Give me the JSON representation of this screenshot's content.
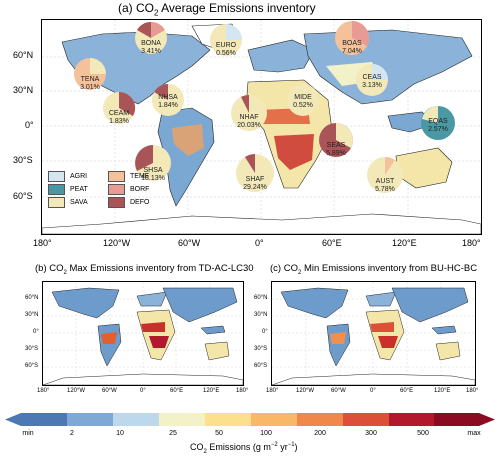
{
  "main_title": "(a) CO",
  "main_title_sub": "2",
  "main_title_rest": " Average Emissions inventory",
  "lat_labels": [
    "60°N",
    "30°N",
    "0°",
    "30°S",
    "60°S"
  ],
  "lon_labels": [
    "180°",
    "120°W",
    "60°W",
    "0°",
    "60°E",
    "120°E",
    "180°"
  ],
  "legend": [
    {
      "label": "AGRI",
      "color": "#d4e6f2"
    },
    {
      "label": "PEAT",
      "color": "#4a98a4"
    },
    {
      "label": "SAVA",
      "color": "#f2e8b8"
    },
    {
      "label": "TEMF",
      "color": "#f4c19a"
    },
    {
      "label": "BORF",
      "color": "#e89b95"
    },
    {
      "label": "DEFO",
      "color": "#a95457"
    }
  ],
  "regions": [
    {
      "name": "BONA",
      "pct": "3.41%"
    },
    {
      "name": "TENA",
      "pct": "3.01%"
    },
    {
      "name": "CEAM",
      "pct": "1.83%"
    },
    {
      "name": "NHSA",
      "pct": "1.84%"
    },
    {
      "name": "SHSA",
      "pct": "18.13%"
    },
    {
      "name": "EURO",
      "pct": "0.56%"
    },
    {
      "name": "MIDE",
      "pct": "0.52%"
    },
    {
      "name": "NHAF",
      "pct": "20.03%"
    },
    {
      "name": "SHAF",
      "pct": "29.24%"
    },
    {
      "name": "BOAS",
      "pct": "7.04%"
    },
    {
      "name": "CEAS",
      "pct": "3.13%"
    },
    {
      "name": "SEAS",
      "pct": "5.89%"
    },
    {
      "name": "EQAS",
      "pct": "2.57%"
    },
    {
      "name": "AUST",
      "pct": "5.78%"
    }
  ],
  "panel_b_title": "(b) CO",
  "panel_b_sub": "2",
  "panel_b_rest": " Max Emissions inventory from TD-AC-LC30",
  "panel_c_title": "(c) CO",
  "panel_c_sub": "2",
  "panel_c_rest": " Min Emissions inventory from BU-HC-BC",
  "small_lat_labels": [
    "60°N",
    "30°N",
    "0°",
    "30°S",
    "60°S"
  ],
  "small_lon_labels": [
    "180°",
    "120°W",
    "60°W",
    "0°",
    "60°E",
    "120°E",
    "180°"
  ],
  "colorbar": {
    "labels": [
      "min",
      "2",
      "10",
      "25",
      "50",
      "100",
      "200",
      "300",
      "500",
      "max"
    ],
    "colors": [
      "#4d78b4",
      "#7fa9d4",
      "#bcd8ea",
      "#f3f1c8",
      "#fce08e",
      "#f9b868",
      "#f0884c",
      "#dd5038",
      "#b3192c",
      "#8b0c22"
    ],
    "title": "CO",
    "title_sub": "2",
    "title_rest": " Emissions (g m",
    "title_sup1": "−2",
    "title_mid": " yr",
    "title_sup2": "−1",
    "title_end": ")"
  }
}
